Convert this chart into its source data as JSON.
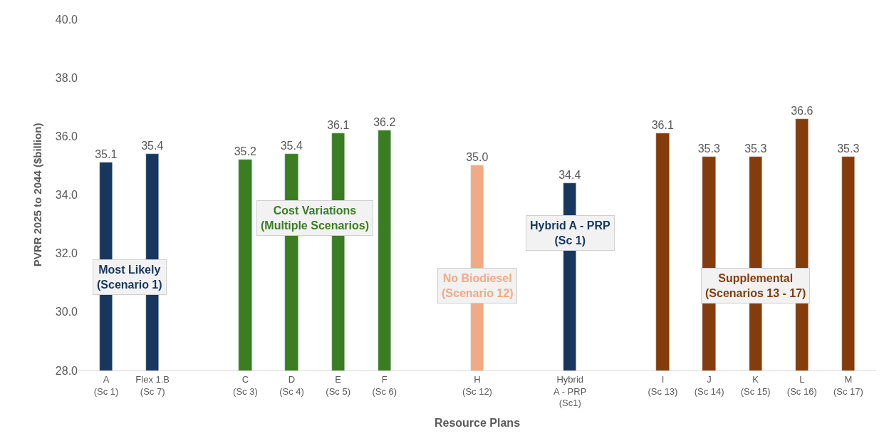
{
  "chart_data": {
    "type": "bar",
    "xlabel": "Resource Plans",
    "ylabel": "PVRR 2025 to 2044 ($billion)",
    "categories": [
      "A\n(Sc 1)",
      "Flex 1.B\n(Sc 7)",
      null,
      "C\n(Sc 3)",
      "D\n(Sc 4)",
      "E\n(Sc 5)",
      "F\n(Sc 6)",
      null,
      "H\n(Sc 12)",
      null,
      "Hybrid\nA - PRP\n(Sc1)",
      null,
      "I\n(Sc 13)",
      "J\n(Sc 14)",
      "K\n(Sc 15)",
      "L\n(Sc 16)",
      "M\n(Sc 17)"
    ],
    "values": [
      35.1,
      35.4,
      null,
      35.2,
      35.4,
      36.1,
      36.2,
      null,
      35.0,
      null,
      34.4,
      null,
      36.1,
      35.3,
      35.3,
      36.6,
      35.3
    ],
    "colors": [
      "#17375e",
      "#17375e",
      null,
      "#3a7d22",
      "#3a7d22",
      "#3a7d22",
      "#3a7d22",
      null,
      "#f2aa84",
      null,
      "#17375e",
      null,
      "#843c0c",
      "#843c0c",
      "#843c0c",
      "#843c0c",
      "#843c0c"
    ],
    "ylim": [
      28,
      40
    ],
    "yticks": [
      {
        "value": 28,
        "label": "28.0"
      },
      {
        "value": 30,
        "label": "30.0"
      },
      {
        "value": 32,
        "label": "32.0"
      },
      {
        "value": 34,
        "label": "34.0"
      },
      {
        "value": 36,
        "label": "36.0"
      },
      {
        "value": 38,
        "label": "38.0"
      },
      {
        "value": 40,
        "label": "40.0"
      }
    ],
    "value_labels": [
      "35.1",
      "35.4",
      null,
      "35.2",
      "35.4",
      "36.1",
      "36.2",
      null,
      "35.0",
      null,
      "34.4",
      null,
      "36.1",
      "35.3",
      "35.3",
      "36.6",
      "35.3"
    ],
    "legend": false,
    "annotations": [
      "Most Likely\n(Scenario 1)",
      "Cost Variations\n(Multiple Scenarios)",
      "No Biodiesel\n(Scenario 12)",
      "Hybrid A - PRP\n(Sc 1)",
      "Supplemental\n(Scenarios 13 - 17)"
    ]
  }
}
